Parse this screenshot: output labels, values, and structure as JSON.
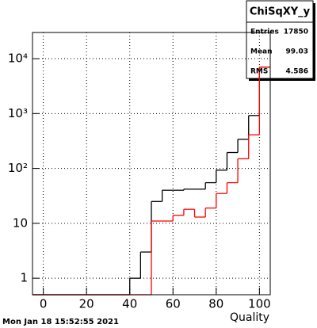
{
  "chart_data": {
    "type": "histogram",
    "x_label": "Quality",
    "date": "Mon Jan 18 15:52:55 2021",
    "bins": [
      -5,
      0,
      5,
      10,
      15,
      20,
      25,
      30,
      35,
      40,
      45,
      50,
      55,
      60,
      65,
      70,
      75,
      80,
      85,
      90,
      95,
      100,
      105
    ],
    "series": [
      {
        "color": "#000000",
        "values": [
          0,
          0,
          0,
          0,
          0,
          0,
          0,
          0,
          0,
          1,
          3,
          25,
          40,
          40,
          42,
          42,
          55,
          93,
          195,
          340,
          920,
          7000
        ]
      },
      {
        "color": "#ff0000",
        "values": [
          0,
          0,
          0,
          0,
          0,
          0,
          0,
          0,
          0,
          0,
          0,
          11,
          11,
          14,
          18,
          13,
          19,
          35,
          55,
          150,
          410,
          7000
        ]
      }
    ],
    "xlim": [
      -5,
      105
    ],
    "xticks": [
      0,
      20,
      40,
      60,
      80,
      100
    ],
    "ylim": [
      0.5,
      30000
    ],
    "log_y": true,
    "grid": true,
    "yticks": [
      1,
      10,
      {
        "value": 100,
        "label": "10²"
      },
      {
        "value": 1000,
        "label": "10³"
      },
      {
        "value": 10000,
        "label": "10⁴"
      }
    ],
    "stats": {
      "title": "ChiSqXY_y",
      "rows": [
        [
          "Entries",
          17850
        ],
        [
          "Mean",
          99.03
        ],
        [
          "RMS",
          4.586
        ]
      ]
    }
  }
}
